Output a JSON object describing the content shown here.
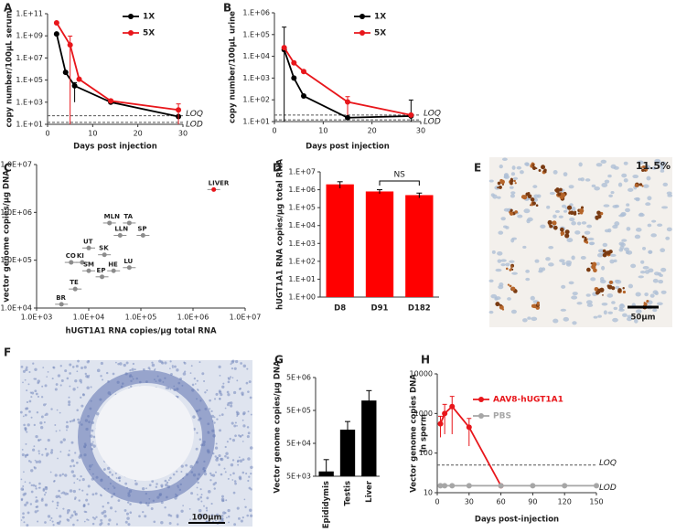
{
  "panel_labels": [
    "A",
    "B",
    "C",
    "D",
    "E",
    "F",
    "G",
    "H"
  ],
  "images": [
    {
      "annotation": "11.5%",
      "scale_bar": "50µm"
    },
    {
      "scale_bar": "100µm"
    }
  ],
  "chart_data": [
    {
      "type": "line",
      "ylabel": "copy number/100µL serum",
      "xlabel": "Days post injection",
      "xlim": [
        0,
        30
      ],
      "xticks": [
        0,
        10,
        20,
        30
      ],
      "log_y": true,
      "ylim": [
        10,
        100000000000
      ],
      "yticks": [
        {
          "value": 10,
          "label": "1.E+01"
        },
        {
          "value": 1000,
          "label": "1.E+03"
        },
        {
          "value": 100000,
          "label": "1.E+05"
        },
        {
          "value": 10000000,
          "label": "1.E+07"
        },
        {
          "value": 1000000000,
          "label": "1.E+09"
        },
        {
          "value": 100000000000,
          "label": "1.E+11"
        }
      ],
      "legend": "upper right",
      "series": [
        {
          "name": "1X",
          "color": "#000000",
          "x": [
            2,
            4,
            6,
            14,
            29
          ],
          "values": [
            1500000000,
            500000,
            30000,
            1000,
            50
          ],
          "errors": [
            null,
            null,
            29000,
            null,
            null
          ]
        },
        {
          "name": "5X",
          "color": "#e8161b",
          "x": [
            2,
            5,
            7,
            14,
            29
          ],
          "values": [
            15000000000,
            150000000,
            120000,
            1300,
            200
          ],
          "errors": [
            null,
            800000000,
            null,
            500,
            500
          ]
        }
      ],
      "reference_lines": [
        {
          "label": "LOQ",
          "value": 60
        },
        {
          "label": "LOD",
          "value": 15
        }
      ]
    },
    {
      "type": "line",
      "ylabel": "copy number/100µL urine",
      "xlabel": "Days post injection",
      "xlim": [
        0,
        30
      ],
      "xticks": [
        0,
        10,
        20,
        30
      ],
      "log_y": true,
      "ylim": [
        10,
        1000000
      ],
      "yticks": [
        {
          "value": 10,
          "label": "1.E+01"
        },
        {
          "value": 100,
          "label": "1.E+02"
        },
        {
          "value": 1000,
          "label": "1.E+03"
        },
        {
          "value": 10000,
          "label": "1.E+04"
        },
        {
          "value": 100000,
          "label": "1.E+05"
        },
        {
          "value": 1000000,
          "label": "1.E+06"
        }
      ],
      "legend": "upper right",
      "series": [
        {
          "name": "1X",
          "color": "#000000",
          "x": [
            2,
            4,
            6,
            15,
            28
          ],
          "values": [
            20000,
            1000,
            150,
            15,
            18
          ],
          "errors": [
            200000,
            null,
            null,
            null,
            80
          ]
        },
        {
          "name": "5X",
          "color": "#e8161b",
          "x": [
            2,
            4,
            6,
            15,
            28
          ],
          "values": [
            25000,
            5000,
            2000,
            80,
            20
          ],
          "errors": [
            null,
            null,
            null,
            60,
            null
          ]
        }
      ],
      "reference_lines": [
        {
          "label": "LOQ",
          "value": 20
        },
        {
          "label": "LOD",
          "value": 12
        }
      ]
    },
    {
      "type": "scatter",
      "ylabel": "vector genome copies/µg DNA",
      "xlabel": "hUGT1A1 RNA copies/µg total RNA",
      "log_x": true,
      "xlim": [
        1000,
        10000000
      ],
      "xticks": [
        {
          "value": 1000,
          "label": "1.0E+03"
        },
        {
          "value": 10000,
          "label": "1.0E+04"
        },
        {
          "value": 100000,
          "label": "1.0E+05"
        },
        {
          "value": 1000000,
          "label": "1.0E+06"
        },
        {
          "value": 10000000,
          "label": "1.0E+07"
        }
      ],
      "log_y": true,
      "ylim": [
        10000,
        10000000
      ],
      "yticks": [
        {
          "value": 10000,
          "label": "1.0E+04"
        },
        {
          "value": 100000,
          "label": "1.0E+05"
        },
        {
          "value": 1000000,
          "label": "1.0E+06"
        },
        {
          "value": 10000000,
          "label": "1.0E+07"
        }
      ],
      "labels": [
        "LIVER",
        "MLN",
        "TA",
        "LLN",
        "SP",
        "UT",
        "SK",
        "CO",
        "KI",
        "SM",
        "HE",
        "EP",
        "LU",
        "TE",
        "BR"
      ],
      "x": [
        2500000,
        25000,
        60000,
        40000,
        110000,
        10000,
        20000,
        4600,
        7500,
        10000,
        30000,
        18000,
        60000,
        5500,
        3000
      ],
      "values": [
        3000000,
        600000,
        600000,
        330000,
        330000,
        180000,
        130000,
        90000,
        90000,
        60000,
        60000,
        45000,
        70000,
        25000,
        12000
      ],
      "point_colors": [
        "#e8161b",
        "#8c8c8c",
        "#8c8c8c",
        "#8c8c8c",
        "#8c8c8c",
        "#8c8c8c",
        "#8c8c8c",
        "#8c8c8c",
        "#8c8c8c",
        "#8c8c8c",
        "#8c8c8c",
        "#8c8c8c",
        "#8c8c8c",
        "#8c8c8c",
        "#8c8c8c"
      ]
    },
    {
      "type": "bar",
      "ylabel": "hUGT1A1 RNA copies/µg total RNA",
      "annotation": "NS",
      "categories": [
        "D8",
        "D91",
        "D182"
      ],
      "values": [
        2000000,
        800000,
        500000
      ],
      "errors": [
        800000,
        200000,
        150000
      ],
      "color": "#ff0000",
      "log_y": true,
      "ylim": [
        1,
        10000000
      ],
      "yticks": [
        {
          "value": 1,
          "label": "1.E+00"
        },
        {
          "value": 10,
          "label": "1.E+01"
        },
        {
          "value": 100,
          "label": "1.E+02"
        },
        {
          "value": 1000,
          "label": "1.E+03"
        },
        {
          "value": 10000,
          "label": "1.E+04"
        },
        {
          "value": 100000,
          "label": "1.E+05"
        },
        {
          "value": 1000000,
          "label": "1.E+06"
        },
        {
          "value": 10000000,
          "label": "1.E+07"
        }
      ]
    },
    {
      "type": "bar",
      "ylabel": "Vector genome copies/µg DNA",
      "categories": [
        "Epididymis",
        "Testis",
        "Liver"
      ],
      "values": [
        7000,
        130000,
        1000000
      ],
      "errors": [
        9000,
        100000,
        1000000
      ],
      "color": "#000000",
      "log_y": true,
      "ylim": [
        5000,
        5000000
      ],
      "yticks": [
        {
          "value": 5000,
          "label": "5E+03"
        },
        {
          "value": 50000,
          "label": "5E+04"
        },
        {
          "value": 500000,
          "label": "5E+05"
        },
        {
          "value": 5000000,
          "label": "5E+06"
        }
      ]
    },
    {
      "type": "line",
      "ylabel": [
        "Vector genome copies DNA",
        "in sperm"
      ],
      "xlabel": "Days post-injection",
      "xlim": [
        0,
        150
      ],
      "xticks": [
        0,
        30,
        60,
        90,
        120,
        150
      ],
      "log_y": true,
      "ylim": [
        10,
        10000
      ],
      "yticks": [
        10,
        100,
        1000,
        10000
      ],
      "legend": "upper right",
      "series": [
        {
          "name": "AAV8-hUGT1A1",
          "color": "#e8161b",
          "x": [
            3,
            7,
            14,
            30,
            60
          ],
          "values": [
            550,
            1000,
            1500,
            450,
            15
          ],
          "errors": [
            300,
            700,
            1200,
            300,
            null
          ]
        },
        {
          "name": "PBS",
          "color": "#a6a6a6",
          "x": [
            3,
            7,
            14,
            30,
            60,
            90,
            120,
            150
          ],
          "values": [
            15,
            15,
            15,
            15,
            15,
            15,
            15,
            15
          ]
        }
      ],
      "reference_lines": [
        {
          "label": "LOQ",
          "value": 50
        },
        {
          "label": "LOD",
          "value": 15
        }
      ]
    }
  ]
}
